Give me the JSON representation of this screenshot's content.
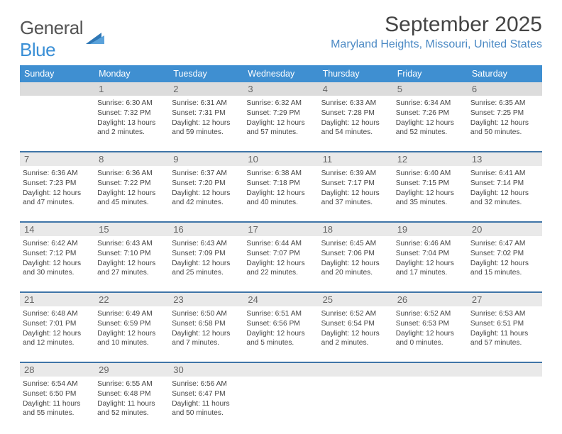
{
  "logo": {
    "line1": "General",
    "line2": "Blue"
  },
  "title": "September 2025",
  "location": "Maryland Heights, Missouri, United States",
  "header_bg": "#3f8fd1",
  "rule_color": "#3f75a7",
  "daynum_bg": "#e9e9e9",
  "text_color": "#444444",
  "dayNames": [
    "Sunday",
    "Monday",
    "Tuesday",
    "Wednesday",
    "Thursday",
    "Friday",
    "Saturday"
  ],
  "weeks": [
    {
      "nums": [
        "",
        "1",
        "2",
        "3",
        "4",
        "5",
        "6"
      ],
      "cells": [
        null,
        {
          "sunrise": "6:30 AM",
          "sunset": "7:32 PM",
          "daylight": "13 hours and 2 minutes."
        },
        {
          "sunrise": "6:31 AM",
          "sunset": "7:31 PM",
          "daylight": "12 hours and 59 minutes."
        },
        {
          "sunrise": "6:32 AM",
          "sunset": "7:29 PM",
          "daylight": "12 hours and 57 minutes."
        },
        {
          "sunrise": "6:33 AM",
          "sunset": "7:28 PM",
          "daylight": "12 hours and 54 minutes."
        },
        {
          "sunrise": "6:34 AM",
          "sunset": "7:26 PM",
          "daylight": "12 hours and 52 minutes."
        },
        {
          "sunrise": "6:35 AM",
          "sunset": "7:25 PM",
          "daylight": "12 hours and 50 minutes."
        }
      ]
    },
    {
      "nums": [
        "7",
        "8",
        "9",
        "10",
        "11",
        "12",
        "13"
      ],
      "cells": [
        {
          "sunrise": "6:36 AM",
          "sunset": "7:23 PM",
          "daylight": "12 hours and 47 minutes."
        },
        {
          "sunrise": "6:36 AM",
          "sunset": "7:22 PM",
          "daylight": "12 hours and 45 minutes."
        },
        {
          "sunrise": "6:37 AM",
          "sunset": "7:20 PM",
          "daylight": "12 hours and 42 minutes."
        },
        {
          "sunrise": "6:38 AM",
          "sunset": "7:18 PM",
          "daylight": "12 hours and 40 minutes."
        },
        {
          "sunrise": "6:39 AM",
          "sunset": "7:17 PM",
          "daylight": "12 hours and 37 minutes."
        },
        {
          "sunrise": "6:40 AM",
          "sunset": "7:15 PM",
          "daylight": "12 hours and 35 minutes."
        },
        {
          "sunrise": "6:41 AM",
          "sunset": "7:14 PM",
          "daylight": "12 hours and 32 minutes."
        }
      ]
    },
    {
      "nums": [
        "14",
        "15",
        "16",
        "17",
        "18",
        "19",
        "20"
      ],
      "cells": [
        {
          "sunrise": "6:42 AM",
          "sunset": "7:12 PM",
          "daylight": "12 hours and 30 minutes."
        },
        {
          "sunrise": "6:43 AM",
          "sunset": "7:10 PM",
          "daylight": "12 hours and 27 minutes."
        },
        {
          "sunrise": "6:43 AM",
          "sunset": "7:09 PM",
          "daylight": "12 hours and 25 minutes."
        },
        {
          "sunrise": "6:44 AM",
          "sunset": "7:07 PM",
          "daylight": "12 hours and 22 minutes."
        },
        {
          "sunrise": "6:45 AM",
          "sunset": "7:06 PM",
          "daylight": "12 hours and 20 minutes."
        },
        {
          "sunrise": "6:46 AM",
          "sunset": "7:04 PM",
          "daylight": "12 hours and 17 minutes."
        },
        {
          "sunrise": "6:47 AM",
          "sunset": "7:02 PM",
          "daylight": "12 hours and 15 minutes."
        }
      ]
    },
    {
      "nums": [
        "21",
        "22",
        "23",
        "24",
        "25",
        "26",
        "27"
      ],
      "cells": [
        {
          "sunrise": "6:48 AM",
          "sunset": "7:01 PM",
          "daylight": "12 hours and 12 minutes."
        },
        {
          "sunrise": "6:49 AM",
          "sunset": "6:59 PM",
          "daylight": "12 hours and 10 minutes."
        },
        {
          "sunrise": "6:50 AM",
          "sunset": "6:58 PM",
          "daylight": "12 hours and 7 minutes."
        },
        {
          "sunrise": "6:51 AM",
          "sunset": "6:56 PM",
          "daylight": "12 hours and 5 minutes."
        },
        {
          "sunrise": "6:52 AM",
          "sunset": "6:54 PM",
          "daylight": "12 hours and 2 minutes."
        },
        {
          "sunrise": "6:52 AM",
          "sunset": "6:53 PM",
          "daylight": "12 hours and 0 minutes."
        },
        {
          "sunrise": "6:53 AM",
          "sunset": "6:51 PM",
          "daylight": "11 hours and 57 minutes."
        }
      ]
    },
    {
      "nums": [
        "28",
        "29",
        "30",
        "",
        "",
        "",
        ""
      ],
      "cells": [
        {
          "sunrise": "6:54 AM",
          "sunset": "6:50 PM",
          "daylight": "11 hours and 55 minutes."
        },
        {
          "sunrise": "6:55 AM",
          "sunset": "6:48 PM",
          "daylight": "11 hours and 52 minutes."
        },
        {
          "sunrise": "6:56 AM",
          "sunset": "6:47 PM",
          "daylight": "11 hours and 50 minutes."
        },
        null,
        null,
        null,
        null
      ]
    }
  ],
  "labels": {
    "sunrise": "Sunrise:",
    "sunset": "Sunset:",
    "daylight": "Daylight:"
  }
}
